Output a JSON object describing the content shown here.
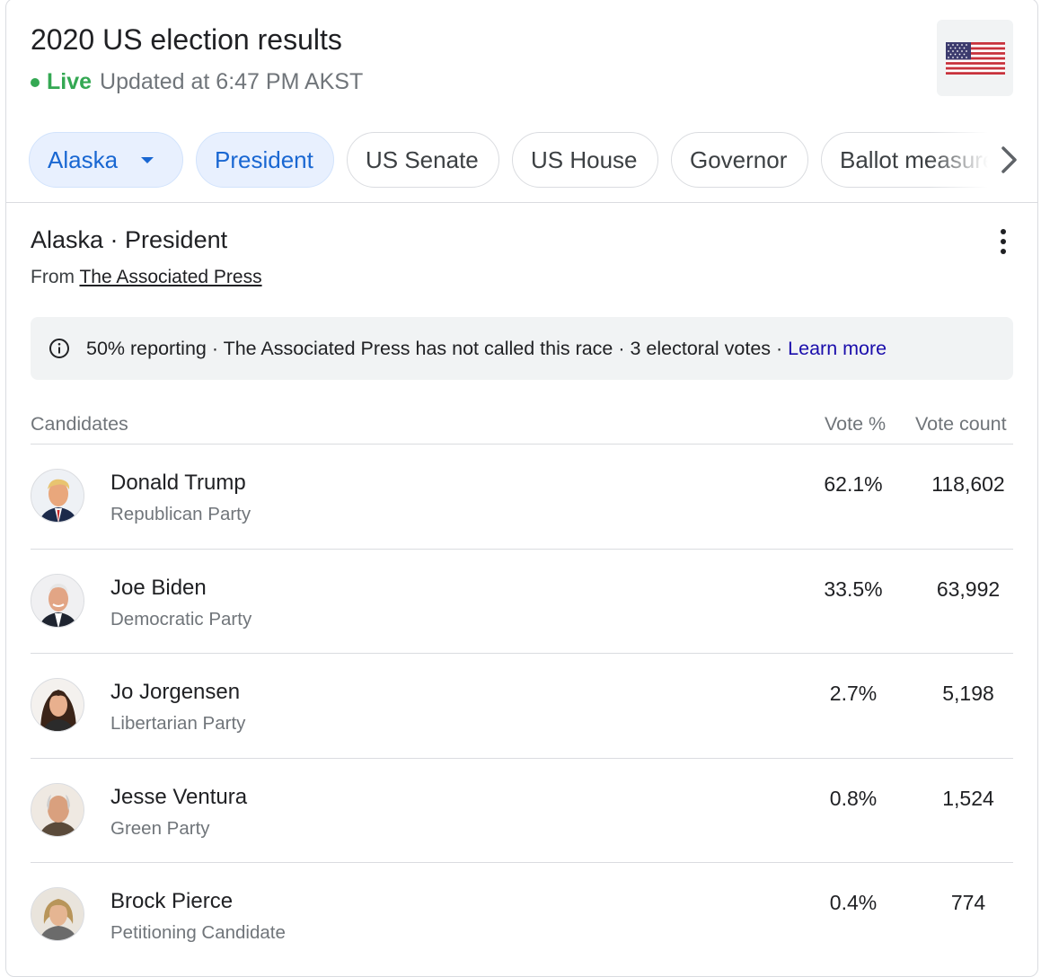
{
  "header": {
    "title": "2020 US election results",
    "live_label": "Live",
    "updated_text": "Updated at 6:47 PM AKST",
    "flag_icon": "us-flag-icon"
  },
  "chips": [
    {
      "label": "Alaska",
      "selected": true,
      "dropdown": true
    },
    {
      "label": "President",
      "selected": true
    },
    {
      "label": "US Senate",
      "selected": false
    },
    {
      "label": "US House",
      "selected": false
    },
    {
      "label": "Governor",
      "selected": false
    },
    {
      "label": "Ballot measures",
      "selected": false
    }
  ],
  "section": {
    "title": "Alaska · President",
    "source_prefix": "From",
    "source_link": "The Associated Press"
  },
  "info": {
    "text": "50% reporting · The Associated Press has not called this race · 3 electoral votes · ",
    "link": "Learn more"
  },
  "table": {
    "headers": {
      "candidates": "Candidates",
      "vote_pct": "Vote %",
      "vote_count": "Vote count"
    },
    "rows": [
      {
        "name": "Donald Trump",
        "party": "Republican Party",
        "pct": "62.1%",
        "count": "118,602"
      },
      {
        "name": "Joe Biden",
        "party": "Democratic Party",
        "pct": "33.5%",
        "count": "63,992"
      },
      {
        "name": "Jo Jorgensen",
        "party": "Libertarian Party",
        "pct": "2.7%",
        "count": "5,198"
      },
      {
        "name": "Jesse Ventura",
        "party": "Green Party",
        "pct": "0.8%",
        "count": "1,524"
      },
      {
        "name": "Brock Pierce",
        "party": "Petitioning Candidate",
        "pct": "0.4%",
        "count": "774"
      }
    ]
  },
  "colors": {
    "live": "#34a853",
    "chip_selected_bg": "#e8f0fe",
    "chip_selected_text": "#1967d2",
    "link": "#1a0dab"
  }
}
